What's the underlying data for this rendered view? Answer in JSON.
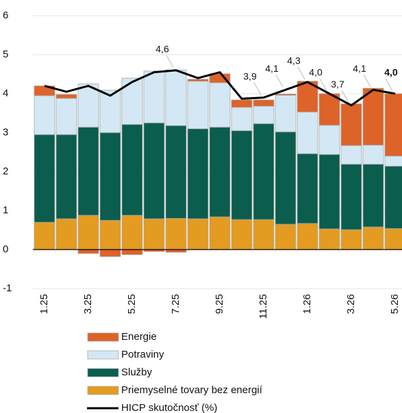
{
  "chart_data": {
    "type": "stacked_bar_line",
    "categories": [
      "1.25",
      null,
      "3.25",
      null,
      "5.25",
      null,
      "7.25",
      null,
      "9.25",
      null,
      "11.25",
      null,
      "1.26",
      null,
      "3.26",
      null,
      "5.26"
    ],
    "ylim": [
      -1,
      6
    ],
    "yticks": [
      -1,
      0,
      1,
      2,
      3,
      4,
      5,
      6
    ],
    "grid": true,
    "series": [
      {
        "name": "Priemyselné tovary bez energií",
        "color": "#e39b21",
        "values": [
          0.7,
          0.79,
          0.88,
          0.75,
          0.88,
          0.79,
          0.8,
          0.79,
          0.84,
          0.77,
          0.77,
          0.65,
          0.67,
          0.53,
          0.51,
          0.58,
          0.54
        ]
      },
      {
        "name": "Služby",
        "color": "#0b5d4e",
        "values": [
          2.25,
          2.16,
          2.26,
          2.25,
          2.33,
          2.46,
          2.38,
          2.31,
          2.3,
          2.28,
          2.46,
          2.37,
          1.79,
          1.91,
          1.68,
          1.61,
          1.6
        ]
      },
      {
        "name": "Potraviny",
        "color": "#d3e8f4",
        "values": [
          1.0,
          0.93,
          1.11,
          1.09,
          1.19,
          1.33,
          1.43,
          1.22,
          1.14,
          0.6,
          0.45,
          0.94,
          1.07,
          0.75,
          0.48,
          0.49,
          0.26
        ]
      },
      {
        "name": "Energie",
        "color": "#de6329",
        "values": [
          0.25,
          0.1,
          -0.1,
          -0.18,
          -0.13,
          -0.05,
          -0.07,
          0.05,
          0.23,
          0.19,
          0.16,
          0.03,
          0.79,
          0.81,
          1.07,
          1.46,
          1.6
        ]
      },
      {
        "name": "HICP skutočnosť (%)",
        "type": "line",
        "color": "#000000",
        "values": [
          4.2,
          4.05,
          4.2,
          3.95,
          4.3,
          4.55,
          4.6,
          4.4,
          4.55,
          3.87,
          3.9,
          4.1,
          4.3,
          4.0,
          3.7,
          4.1,
          4.0
        ],
        "value_labels": [
          null,
          null,
          null,
          null,
          null,
          null,
          "4,6",
          null,
          null,
          null,
          "3,9",
          "4,1",
          "4,3",
          "4,0",
          "3,7",
          "4,1",
          "4,0"
        ]
      }
    ]
  }
}
